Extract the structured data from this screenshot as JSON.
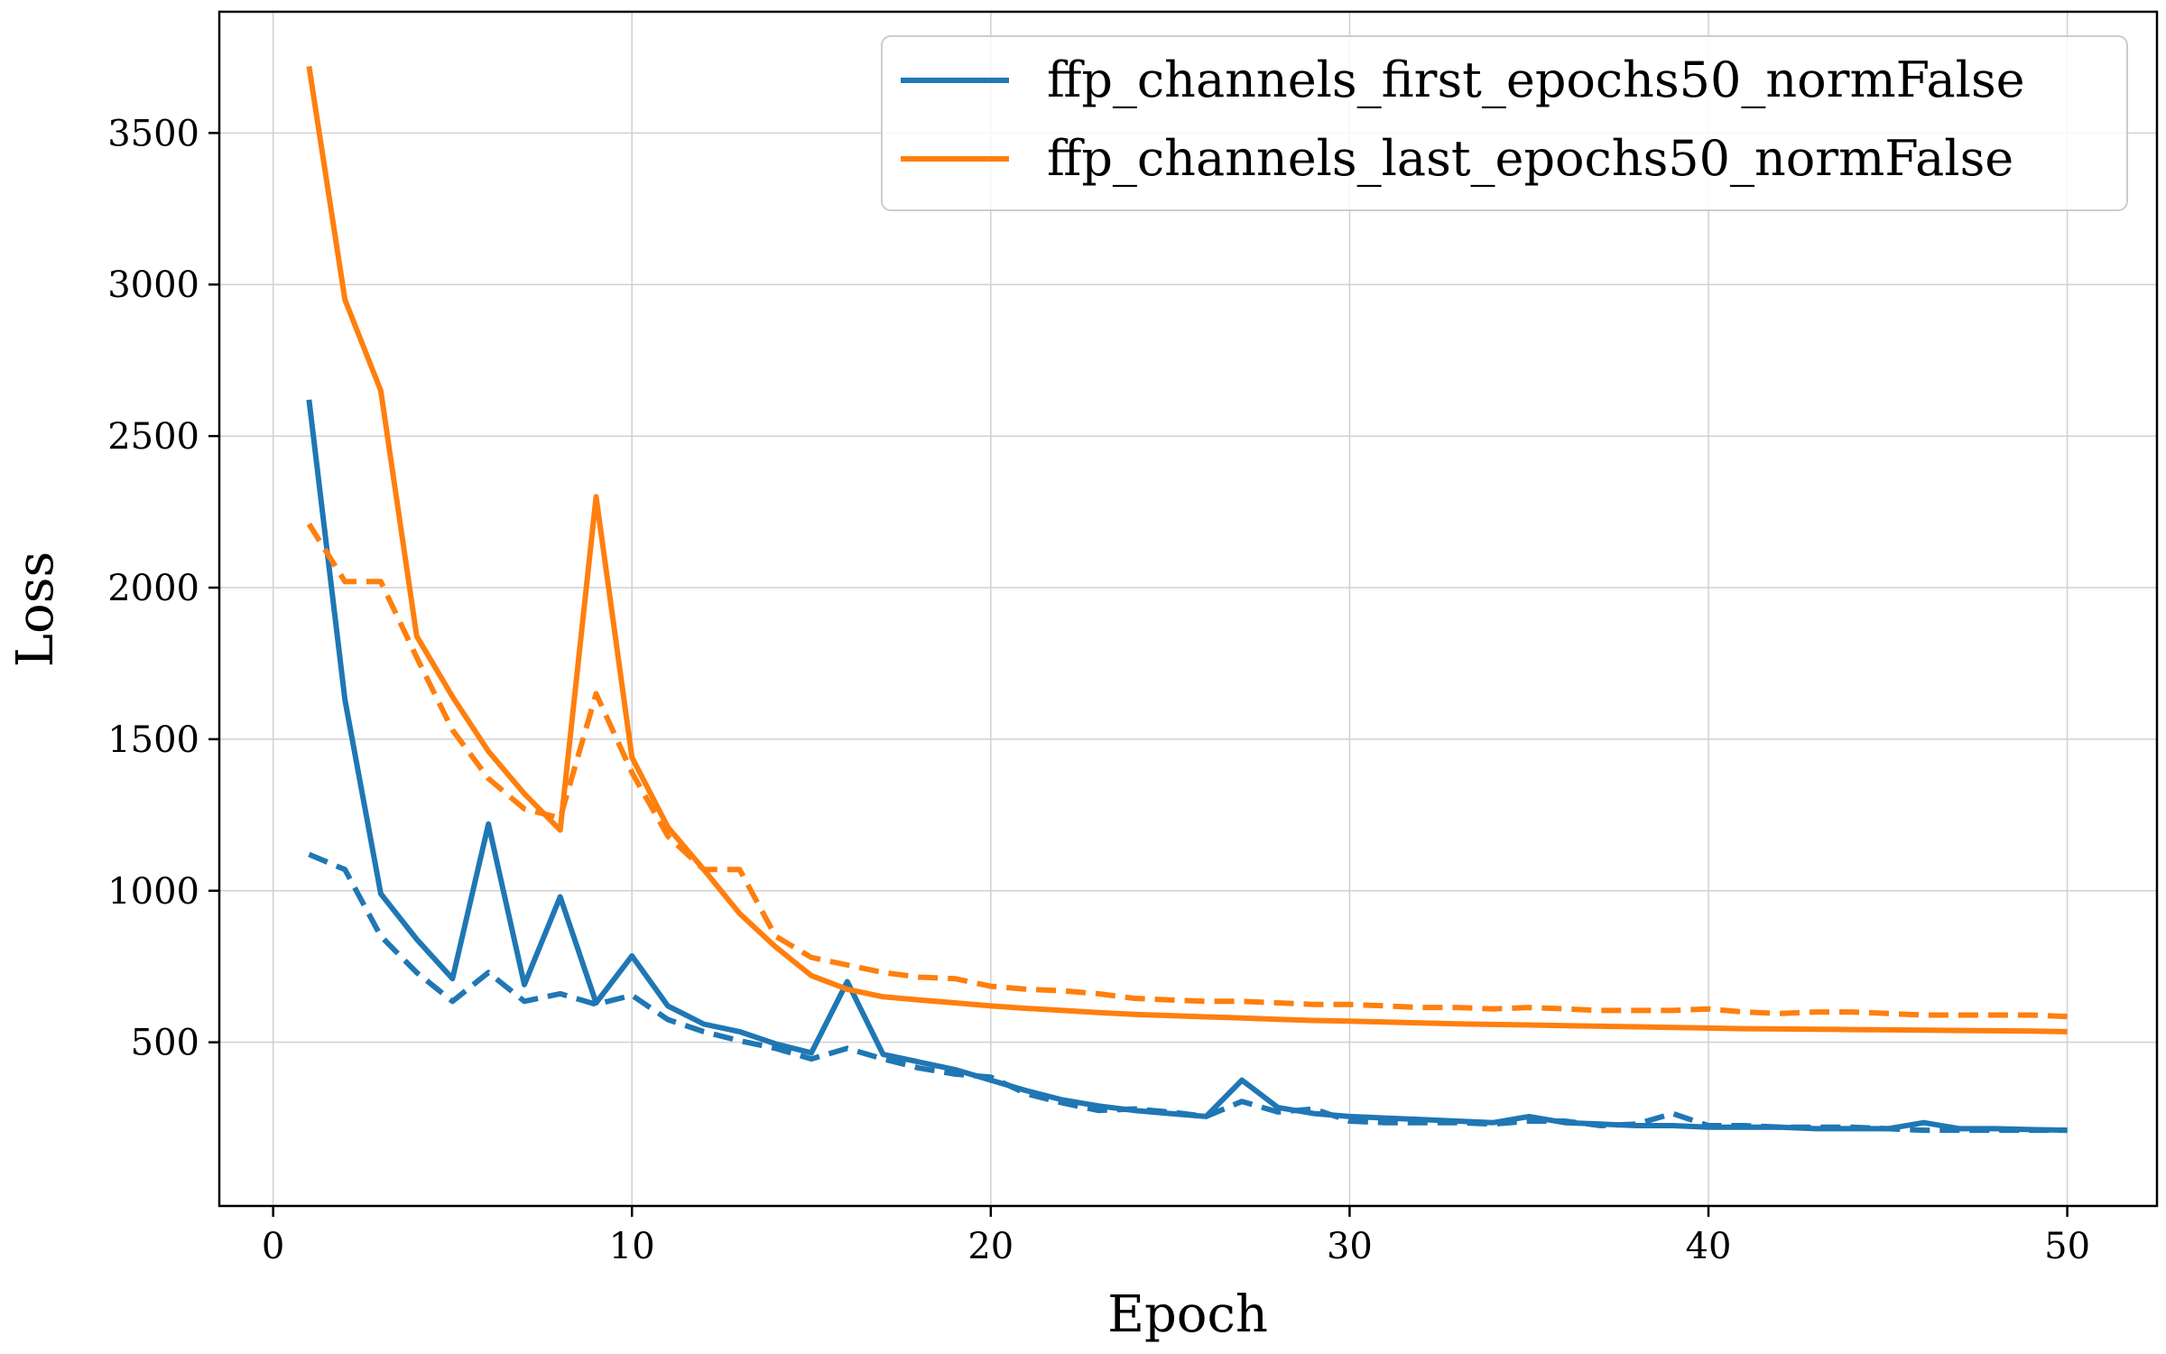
{
  "chart_data": {
    "type": "line",
    "xlabel": "Epoch",
    "ylabel": "Loss",
    "xlim": [
      -1.5,
      52.5
    ],
    "ylim": [
      -40,
      3900
    ],
    "xticks": [
      0,
      10,
      20,
      30,
      40,
      50
    ],
    "yticks": [
      500,
      1000,
      1500,
      2000,
      2500,
      3000,
      3500
    ],
    "grid": true,
    "legend_position": "top-right",
    "line_styles": {
      "solid": "train",
      "dashed": "validation"
    },
    "series": [
      {
        "name": "ffp_channels_first_epochs50_normFalse",
        "color": "#1f77b4",
        "x": [
          1,
          2,
          3,
          4,
          5,
          6,
          7,
          8,
          9,
          10,
          11,
          12,
          13,
          14,
          15,
          16,
          17,
          18,
          19,
          20,
          21,
          22,
          23,
          24,
          25,
          26,
          27,
          28,
          29,
          30,
          31,
          32,
          33,
          34,
          35,
          36,
          37,
          38,
          39,
          40,
          41,
          42,
          43,
          44,
          45,
          46,
          47,
          48,
          49,
          50
        ],
        "solid": [
          2620,
          1630,
          990,
          840,
          710,
          1220,
          690,
          980,
          630,
          785,
          620,
          560,
          535,
          495,
          465,
          700,
          460,
          435,
          410,
          375,
          340,
          310,
          290,
          275,
          265,
          255,
          375,
          285,
          265,
          255,
          250,
          245,
          240,
          235,
          255,
          235,
          230,
          225,
          225,
          220,
          220,
          220,
          215,
          215,
          215,
          235,
          215,
          215,
          212,
          210
        ],
        "dashed": [
          1120,
          1070,
          850,
          730,
          635,
          730,
          635,
          660,
          625,
          655,
          575,
          535,
          505,
          480,
          445,
          480,
          445,
          415,
          395,
          385,
          330,
          300,
          275,
          280,
          270,
          255,
          305,
          270,
          280,
          240,
          235,
          235,
          235,
          230,
          240,
          240,
          225,
          230,
          265,
          225,
          225,
          220,
          220,
          220,
          215,
          210,
          210,
          210,
          210,
          210
        ]
      },
      {
        "name": "ffp_channels_last_epochs50_normFalse",
        "color": "#ff7f0e",
        "x": [
          1,
          2,
          3,
          4,
          5,
          6,
          7,
          8,
          9,
          10,
          11,
          12,
          13,
          14,
          15,
          16,
          17,
          18,
          19,
          20,
          21,
          22,
          23,
          24,
          25,
          26,
          27,
          28,
          29,
          30,
          31,
          32,
          33,
          34,
          35,
          36,
          37,
          38,
          39,
          40,
          41,
          42,
          43,
          44,
          45,
          46,
          47,
          48,
          49,
          50
        ],
        "solid": [
          3720,
          2950,
          2650,
          1840,
          1640,
          1460,
          1320,
          1200,
          2300,
          1440,
          1210,
          1070,
          925,
          815,
          720,
          675,
          650,
          640,
          630,
          620,
          612,
          605,
          598,
          592,
          588,
          584,
          580,
          576,
          572,
          570,
          567,
          564,
          561,
          559,
          557,
          555,
          553,
          551,
          549,
          547,
          545,
          544,
          543,
          542,
          541,
          540,
          539,
          538,
          537,
          535
        ],
        "dashed": [
          2210,
          2020,
          2020,
          1770,
          1530,
          1370,
          1270,
          1240,
          1650,
          1390,
          1180,
          1070,
          1070,
          850,
          780,
          755,
          730,
          715,
          710,
          685,
          675,
          670,
          660,
          645,
          640,
          635,
          635,
          630,
          625,
          625,
          620,
          615,
          615,
          610,
          615,
          610,
          605,
          605,
          605,
          610,
          600,
          595,
          600,
          600,
          595,
          590,
          590,
          590,
          590,
          585
        ]
      }
    ]
  }
}
